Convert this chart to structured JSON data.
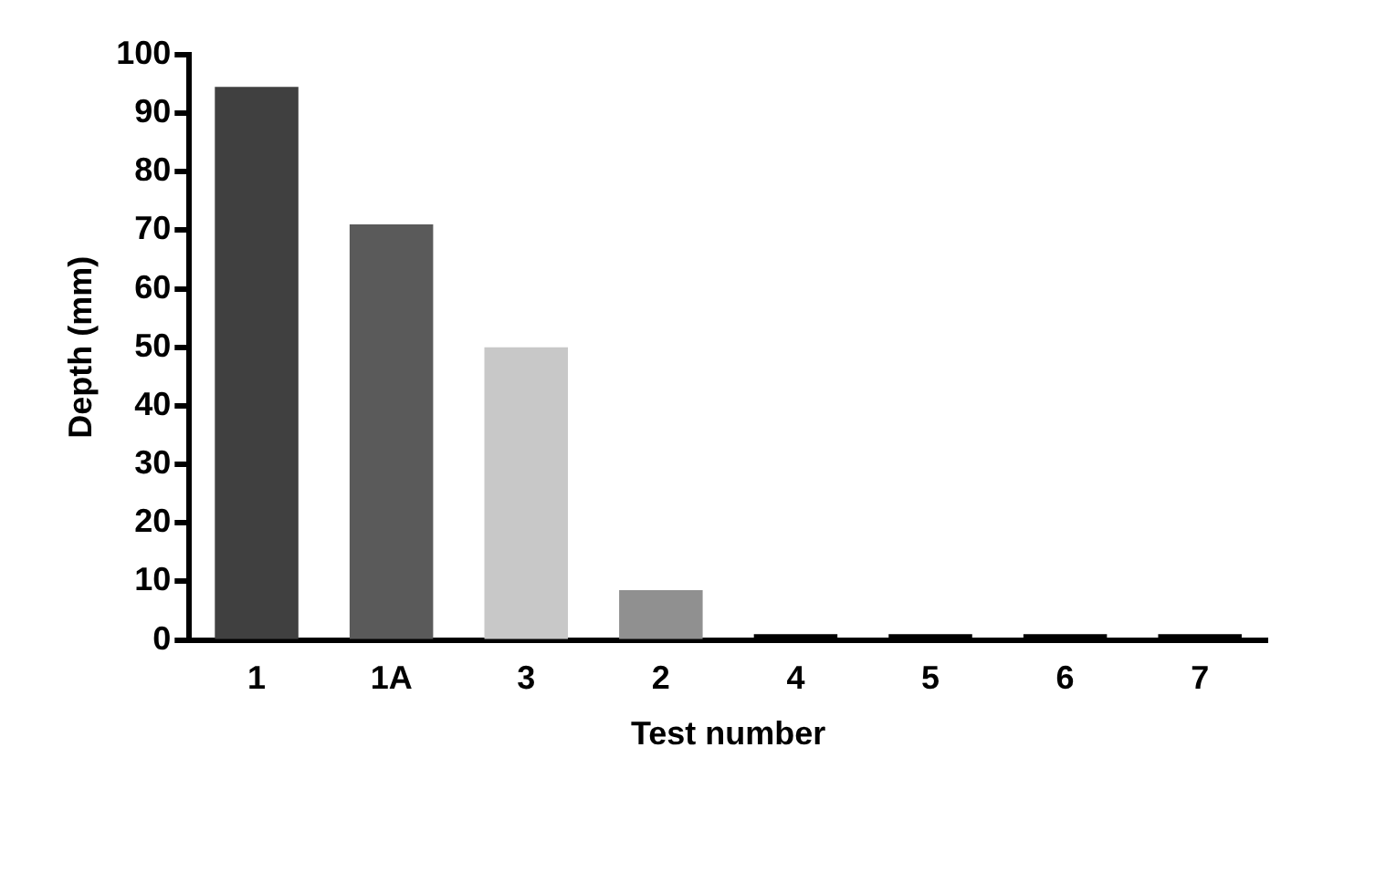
{
  "chart_data": {
    "type": "bar",
    "xlabel": "Test number",
    "ylabel": "Depth (mm)",
    "categories": [
      "1",
      "1A",
      "3",
      "2",
      "4",
      "5",
      "6",
      "7"
    ],
    "values": [
      94.5,
      71,
      50,
      8.5,
      1,
      1,
      1,
      1
    ],
    "colors": [
      "#404040",
      "#5a5a5a",
      "#c8c8c8",
      "#909090",
      "#000000",
      "#000000",
      "#000000",
      "#000000"
    ],
    "ylim": [
      0,
      100
    ],
    "yticks": [
      0,
      10,
      20,
      30,
      40,
      50,
      60,
      70,
      80,
      90,
      100
    ],
    "grid": false,
    "legend": false
  }
}
